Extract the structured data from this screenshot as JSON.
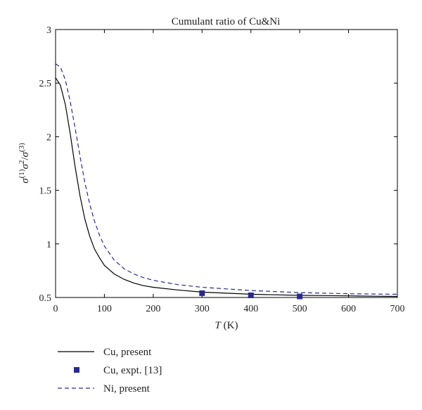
{
  "chart_data": {
    "type": "line",
    "title": "Cumulant ratio of Cu&Ni",
    "xlabel": {
      "var": "T",
      "unit": " (K)"
    },
    "ylabel": {
      "sym": "σ",
      "sup1": "(1)",
      "sym2": "σ",
      "sup2": "2",
      "sep": "/",
      "sym3": "σ",
      "sup3": "(3)"
    },
    "xlim": [
      0,
      700
    ],
    "ylim": [
      0.5,
      3
    ],
    "xticks": [
      "0",
      "100",
      "200",
      "300",
      "400",
      "500",
      "600",
      "700"
    ],
    "xtick_values": [
      0,
      100,
      200,
      300,
      400,
      500,
      600,
      700
    ],
    "yticks": [
      "0.5",
      "1",
      "1.5",
      "2",
      "2.5",
      "3"
    ],
    "ytick_values": [
      0.5,
      1,
      1.5,
      2,
      2.5,
      3
    ],
    "grid": false,
    "legend_position": "below-left",
    "series": [
      {
        "name": "Cu, present",
        "style": "solid",
        "color": "#000000",
        "x": [
          0,
          10,
          20,
          30,
          40,
          50,
          60,
          70,
          80,
          90,
          100,
          120,
          140,
          160,
          180,
          200,
          250,
          300,
          350,
          400,
          450,
          500,
          550,
          600,
          650,
          700
        ],
        "y": [
          2.55,
          2.48,
          2.3,
          2.03,
          1.72,
          1.45,
          1.23,
          1.07,
          0.95,
          0.87,
          0.8,
          0.72,
          0.67,
          0.635,
          0.61,
          0.595,
          0.57,
          0.55,
          0.54,
          0.53,
          0.525,
          0.52,
          0.518,
          0.515,
          0.512,
          0.51
        ]
      },
      {
        "name": "Cu, expt. [13]",
        "style": "marker",
        "color": "#2a2a8c",
        "x": [
          300,
          400,
          500
        ],
        "y": [
          0.54,
          0.52,
          0.51
        ]
      },
      {
        "name": "Ni, present",
        "style": "dashed",
        "color": "#2a2a8c",
        "x": [
          0,
          10,
          20,
          30,
          40,
          50,
          60,
          70,
          80,
          90,
          100,
          120,
          140,
          160,
          180,
          200,
          250,
          300,
          350,
          400,
          450,
          500,
          550,
          600,
          650,
          700
        ],
        "y": [
          2.68,
          2.65,
          2.53,
          2.33,
          2.08,
          1.82,
          1.57,
          1.37,
          1.21,
          1.08,
          0.98,
          0.85,
          0.77,
          0.72,
          0.685,
          0.66,
          0.62,
          0.595,
          0.58,
          0.565,
          0.555,
          0.545,
          0.54,
          0.535,
          0.532,
          0.53
        ]
      }
    ]
  }
}
